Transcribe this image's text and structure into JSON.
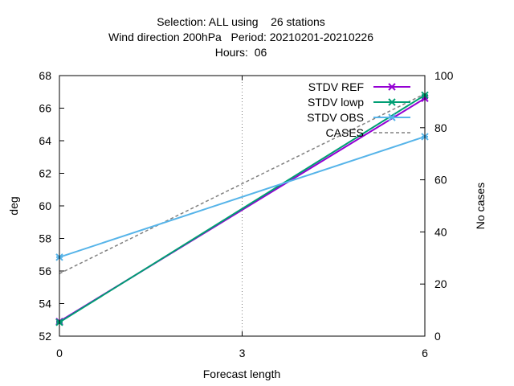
{
  "chart_data": {
    "type": "line",
    "title_lines": [
      "Selection: ALL using    26 stations",
      "Wind direction 200hPa   Period: 20210201-20210226",
      "Hours:  06"
    ],
    "xlabel": "Forecast length",
    "ylabel": "deg",
    "y2label": "No cases",
    "x": [
      0,
      6
    ],
    "xticks": [
      "0",
      "3",
      "6"
    ],
    "xlim": [
      0,
      6
    ],
    "ylim": [
      52,
      68
    ],
    "yticks": [
      "52",
      "54",
      "56",
      "58",
      "60",
      "62",
      "64",
      "66",
      "68"
    ],
    "y2lim": [
      0,
      100
    ],
    "y2ticks": [
      "0",
      "20",
      "40",
      "60",
      "80",
      "100"
    ],
    "grid": "x-only",
    "legend_position": "top-right",
    "series": [
      {
        "name": "STDV REF",
        "axis": "y",
        "color": "#9400d3",
        "dash": "solid",
        "marker": "x",
        "values": [
          52.9,
          66.6
        ]
      },
      {
        "name": "STDV lowp",
        "axis": "y",
        "color": "#009e73",
        "dash": "solid",
        "marker": "x",
        "values": [
          52.85,
          66.8
        ]
      },
      {
        "name": "STDV OBS",
        "axis": "y",
        "color": "#56b4e9",
        "dash": "solid",
        "marker": "x",
        "values": [
          56.85,
          64.25
        ]
      },
      {
        "name": "CASES",
        "axis": "y2",
        "color": "#808080",
        "dash": "dashed",
        "marker": "none",
        "values": [
          24,
          93
        ]
      }
    ]
  }
}
